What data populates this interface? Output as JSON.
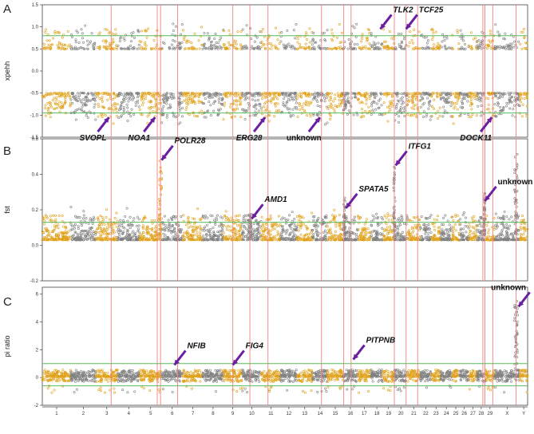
{
  "colors": {
    "odd": "#E0A21C",
    "even": "#808080",
    "threshold": "#5CB85C",
    "redline": "#F08080",
    "arrow": "#6A1FA0",
    "axis": "#444444"
  },
  "chromosomes": [
    "1",
    "2",
    "3",
    "4",
    "5",
    "6",
    "7",
    "8",
    "9",
    "10",
    "11",
    "12",
    "13",
    "14",
    "15",
    "16",
    "17",
    "18",
    "19",
    "20",
    "21",
    "22",
    "23",
    "24",
    "25",
    "26",
    "27",
    "28",
    "29",
    "X",
    "Y"
  ],
  "chromosome_sizes": [
    158,
    137,
    121,
    121,
    121,
    117,
    110,
    113,
    105,
    104,
    107,
    91,
    84,
    84,
    85,
    81,
    73,
    65,
    64,
    72,
    71,
    61,
    52,
    62,
    42,
    51,
    45,
    46,
    51,
    139,
    43
  ],
  "highlight_positions": [
    3.7,
    5.8,
    5.95,
    6.75,
    9.5,
    10.4,
    11.35,
    14.6,
    16.05,
    16.55,
    20.0,
    20.9,
    21.8,
    28.7,
    28.95,
    29.8,
    30.85
  ],
  "chart_data": [
    {
      "type": "scatter",
      "panel": "A",
      "ylabel": "xpehh",
      "yticks": [
        "-1.5",
        "-1.0",
        "-0.5",
        "0.0",
        "0.5",
        "1.0",
        "1.5"
      ],
      "ylim": [
        -1.5,
        1.5
      ],
      "thresholds": [
        0.8,
        -0.95
      ],
      "pattern": "two-bands",
      "annotations": [
        {
          "label": "TLK2",
          "italic": true,
          "chrom": 18.8,
          "value": 0.95
        },
        {
          "label": "TCF25",
          "italic": true,
          "chrom": 20.9,
          "value": 0.95
        },
        {
          "label": "SVOPL",
          "italic": true,
          "chrom": 3.6,
          "value": -1.05
        },
        {
          "label": "NOA1",
          "italic": true,
          "chrom": 5.7,
          "value": -1.05
        },
        {
          "label": "ERG28",
          "italic": true,
          "chrom": 11.2,
          "value": -1.05
        },
        {
          "label": "unknown",
          "italic": false,
          "chrom": 14.5,
          "value": -1.05
        },
        {
          "label": "DOCK11",
          "italic": true,
          "chrom": 29.7,
          "value": -1.05
        }
      ]
    },
    {
      "type": "scatter",
      "panel": "B",
      "ylabel": "fst",
      "yticks": [
        "-0.2",
        "0.0",
        "0.2",
        "0.4",
        "0.6"
      ],
      "ylim": [
        -0.2,
        0.6
      ],
      "thresholds": [
        0.13
      ],
      "pattern": "positive",
      "peaks": [
        {
          "chrom": 5.95,
          "value": 0.48
        },
        {
          "chrom": 10.4,
          "value": 0.18
        },
        {
          "chrom": 16.1,
          "value": 0.27
        },
        {
          "chrom": 20.0,
          "value": 0.45
        },
        {
          "chrom": 28.9,
          "value": 0.3
        },
        {
          "chrom": 30.85,
          "value": 0.52
        }
      ],
      "annotations": [
        {
          "label": "POLR28",
          "italic": true,
          "chrom": 6.0,
          "value": 0.48
        },
        {
          "label": "AMD1",
          "italic": true,
          "chrom": 10.5,
          "value": 0.15
        },
        {
          "label": "SPATA5",
          "italic": true,
          "chrom": 16.2,
          "value": 0.21
        },
        {
          "label": "ITFG1",
          "italic": true,
          "chrom": 20.1,
          "value": 0.45
        },
        {
          "label": "unknown",
          "italic": false,
          "chrom": 28.95,
          "value": 0.25
        }
      ]
    },
    {
      "type": "scatter",
      "panel": "C",
      "ylabel": "pi ratio",
      "yticks": [
        "-2",
        "0",
        "2",
        "4",
        "6"
      ],
      "ylim": [
        -2,
        6.5
      ],
      "thresholds": [
        1.0,
        -0.6
      ],
      "pattern": "ratio",
      "peaks": [
        {
          "chrom": 30.85,
          "value": 5.6
        }
      ],
      "annotations": [
        {
          "label": "NFIB",
          "italic": true,
          "chrom": 6.6,
          "value": 0.9
        },
        {
          "label": "FIG4",
          "italic": true,
          "chrom": 9.5,
          "value": 0.9
        },
        {
          "label": "PITPNB",
          "italic": true,
          "chrom": 16.7,
          "value": 1.3
        },
        {
          "label": "unknown",
          "italic": false,
          "chrom": 30.95,
          "value": 5.1
        }
      ]
    }
  ]
}
